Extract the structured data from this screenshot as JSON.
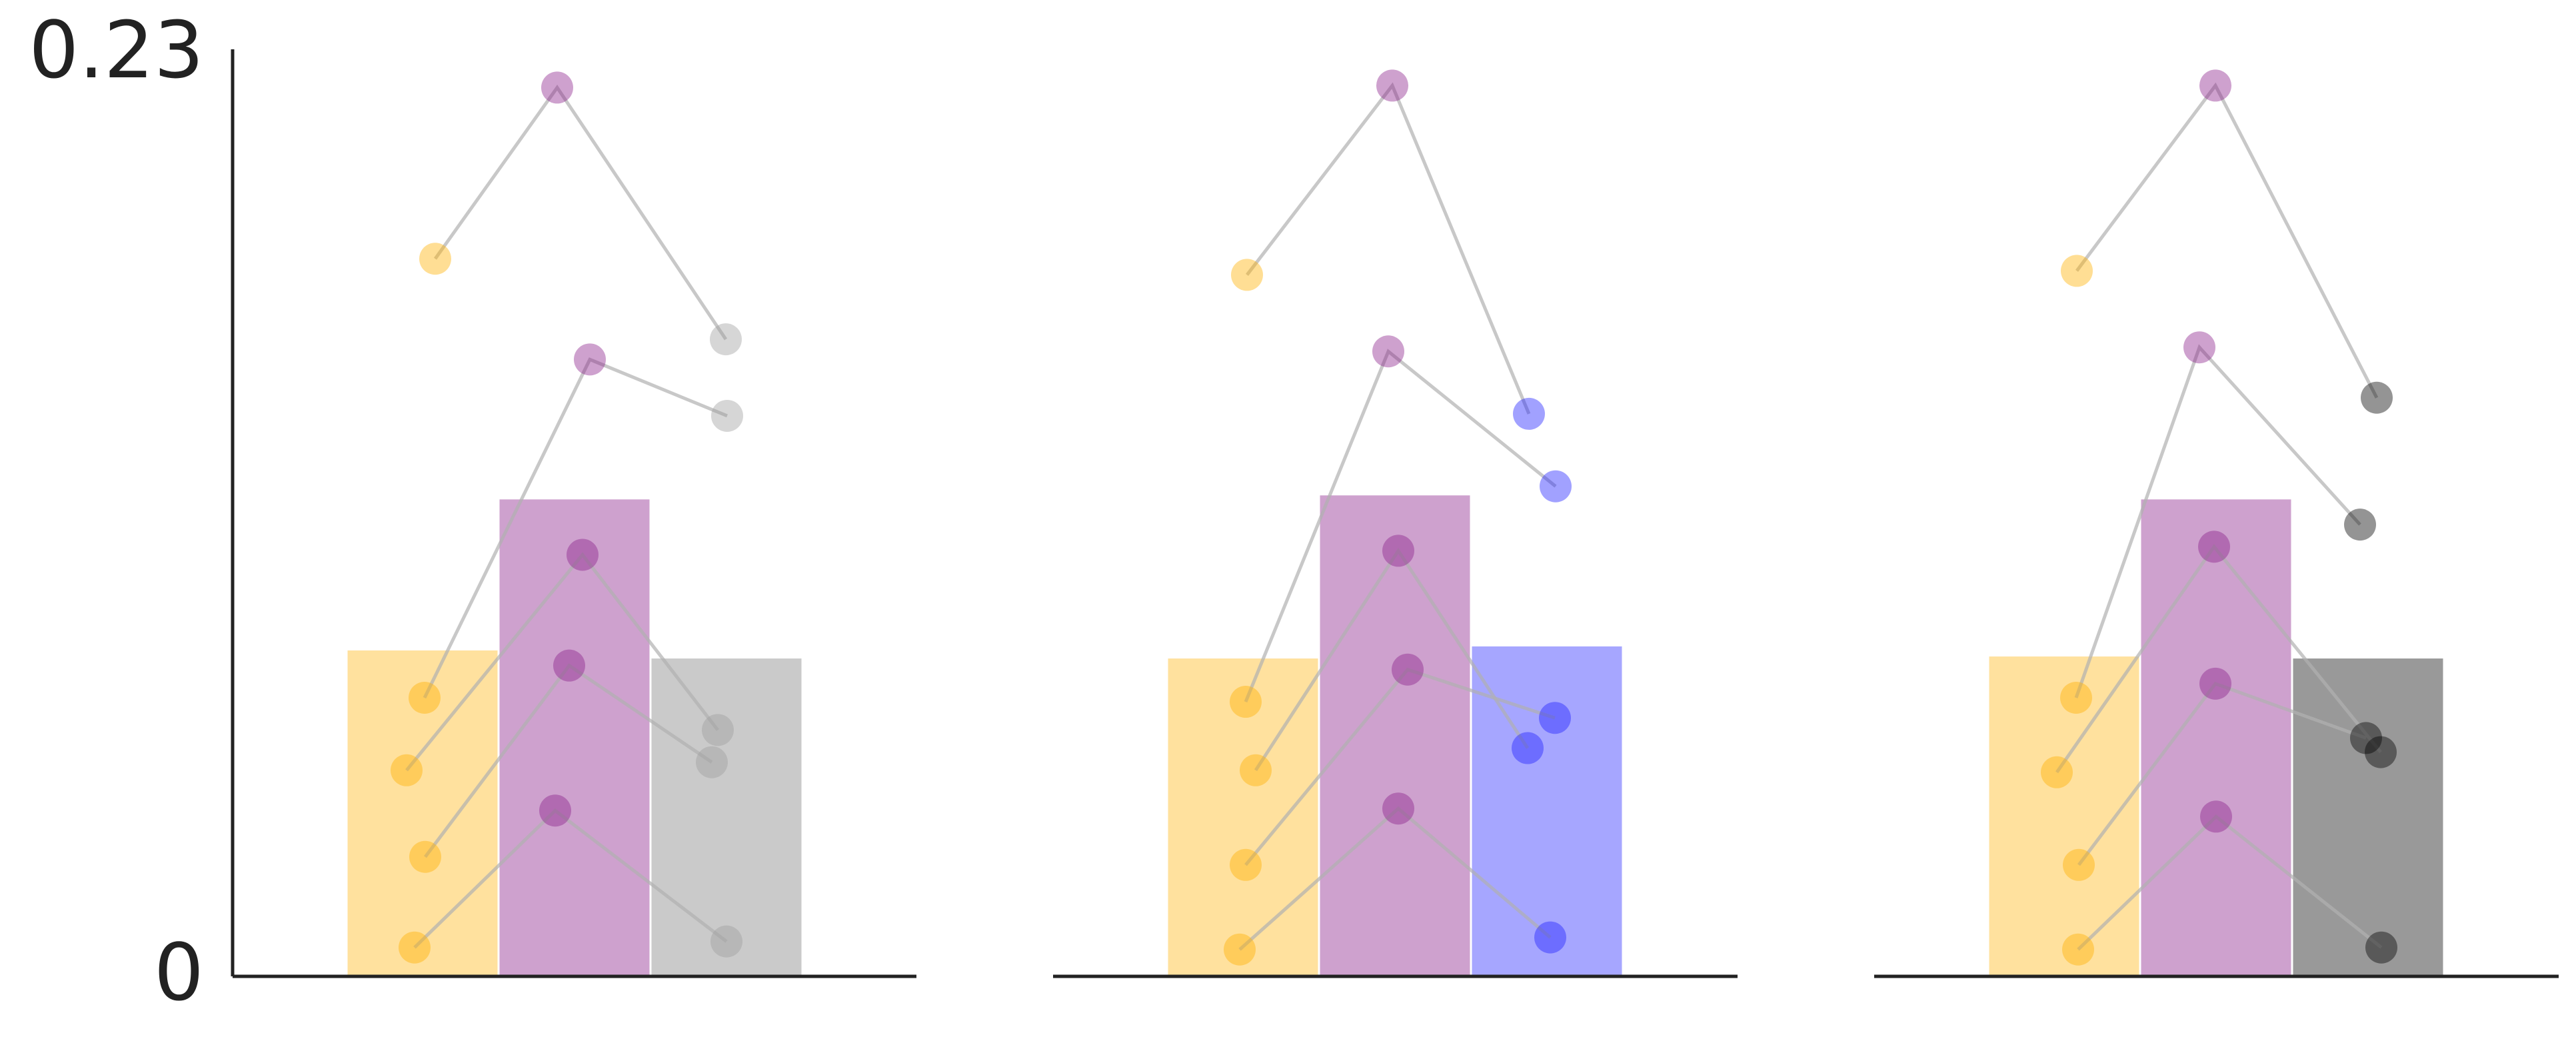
{
  "chart_data": {
    "type": "bar",
    "ylim": [
      0,
      0.23
    ],
    "yticks": [
      "0",
      "0.23"
    ],
    "grid": false,
    "colors": {
      "gold": "#ffb000",
      "purple": "#8b1e8b",
      "silver": "#9e9e9e",
      "blue": "#2020ff",
      "dark": "#000000",
      "axis": "#222222",
      "connector": "#b0b0b0"
    },
    "panels": [
      {
        "bars": [
          {
            "value": 0.081,
            "color": "gold",
            "opacity": 0.38
          },
          {
            "value": 0.1185,
            "color": "purple",
            "opacity": 0.42
          },
          {
            "value": 0.079,
            "color": "silver",
            "opacity": 0.55
          }
        ],
        "points": [
          {
            "values": [
              0.178,
              0.2205,
              0.158
            ],
            "colors": [
              "gold",
              "purple",
              "silver"
            ]
          },
          {
            "values": [
              0.069,
              0.153,
              0.139
            ],
            "colors": [
              "gold",
              "purple",
              "silver"
            ]
          },
          {
            "values": [
              0.051,
              0.1045,
              0.061
            ],
            "colors": [
              "gold",
              "purple",
              "silver"
            ]
          },
          {
            "values": [
              0.0295,
              0.077,
              0.053
            ],
            "colors": [
              "gold",
              "purple",
              "silver"
            ]
          },
          {
            "values": [
              0.007,
              0.041,
              0.0085
            ],
            "colors": [
              "gold",
              "purple",
              "silver"
            ]
          }
        ]
      },
      {
        "bars": [
          {
            "value": 0.079,
            "color": "gold",
            "opacity": 0.38
          },
          {
            "value": 0.1195,
            "color": "purple",
            "opacity": 0.42
          },
          {
            "value": 0.082,
            "color": "blue",
            "opacity": 0.4
          }
        ],
        "points": [
          {
            "values": [
              0.174,
              0.221,
              0.1395
            ],
            "colors": [
              "gold",
              "purple",
              "blue"
            ]
          },
          {
            "values": [
              0.068,
              0.155,
              0.1215
            ],
            "colors": [
              "gold",
              "purple",
              "blue"
            ]
          },
          {
            "values": [
              0.051,
              0.1055,
              0.0565
            ],
            "colors": [
              "gold",
              "purple",
              "blue"
            ]
          },
          {
            "values": [
              0.0275,
              0.076,
              0.064
            ],
            "colors": [
              "gold",
              "purple",
              "blue"
            ]
          },
          {
            "values": [
              0.0065,
              0.0415,
              0.0095
            ],
            "colors": [
              "gold",
              "purple",
              "blue"
            ]
          }
        ]
      },
      {
        "bars": [
          {
            "value": 0.0795,
            "color": "gold",
            "opacity": 0.38
          },
          {
            "value": 0.1185,
            "color": "purple",
            "opacity": 0.42
          },
          {
            "value": 0.079,
            "color": "dark",
            "opacity": 0.4
          }
        ],
        "points": [
          {
            "values": [
              0.175,
              0.221,
              0.1435
            ],
            "colors": [
              "gold",
              "purple",
              "dark"
            ]
          },
          {
            "values": [
              0.069,
              0.156,
              0.112
            ],
            "colors": [
              "gold",
              "purple",
              "dark"
            ]
          },
          {
            "values": [
              0.0505,
              0.1065,
              0.0555
            ],
            "colors": [
              "gold",
              "purple",
              "dark"
            ]
          },
          {
            "values": [
              0.0275,
              0.0725,
              0.059
            ],
            "colors": [
              "gold",
              "purple",
              "dark"
            ]
          },
          {
            "values": [
              0.0065,
              0.0395,
              0.007
            ],
            "colors": [
              "gold",
              "purple",
              "dark"
            ]
          }
        ]
      }
    ]
  }
}
